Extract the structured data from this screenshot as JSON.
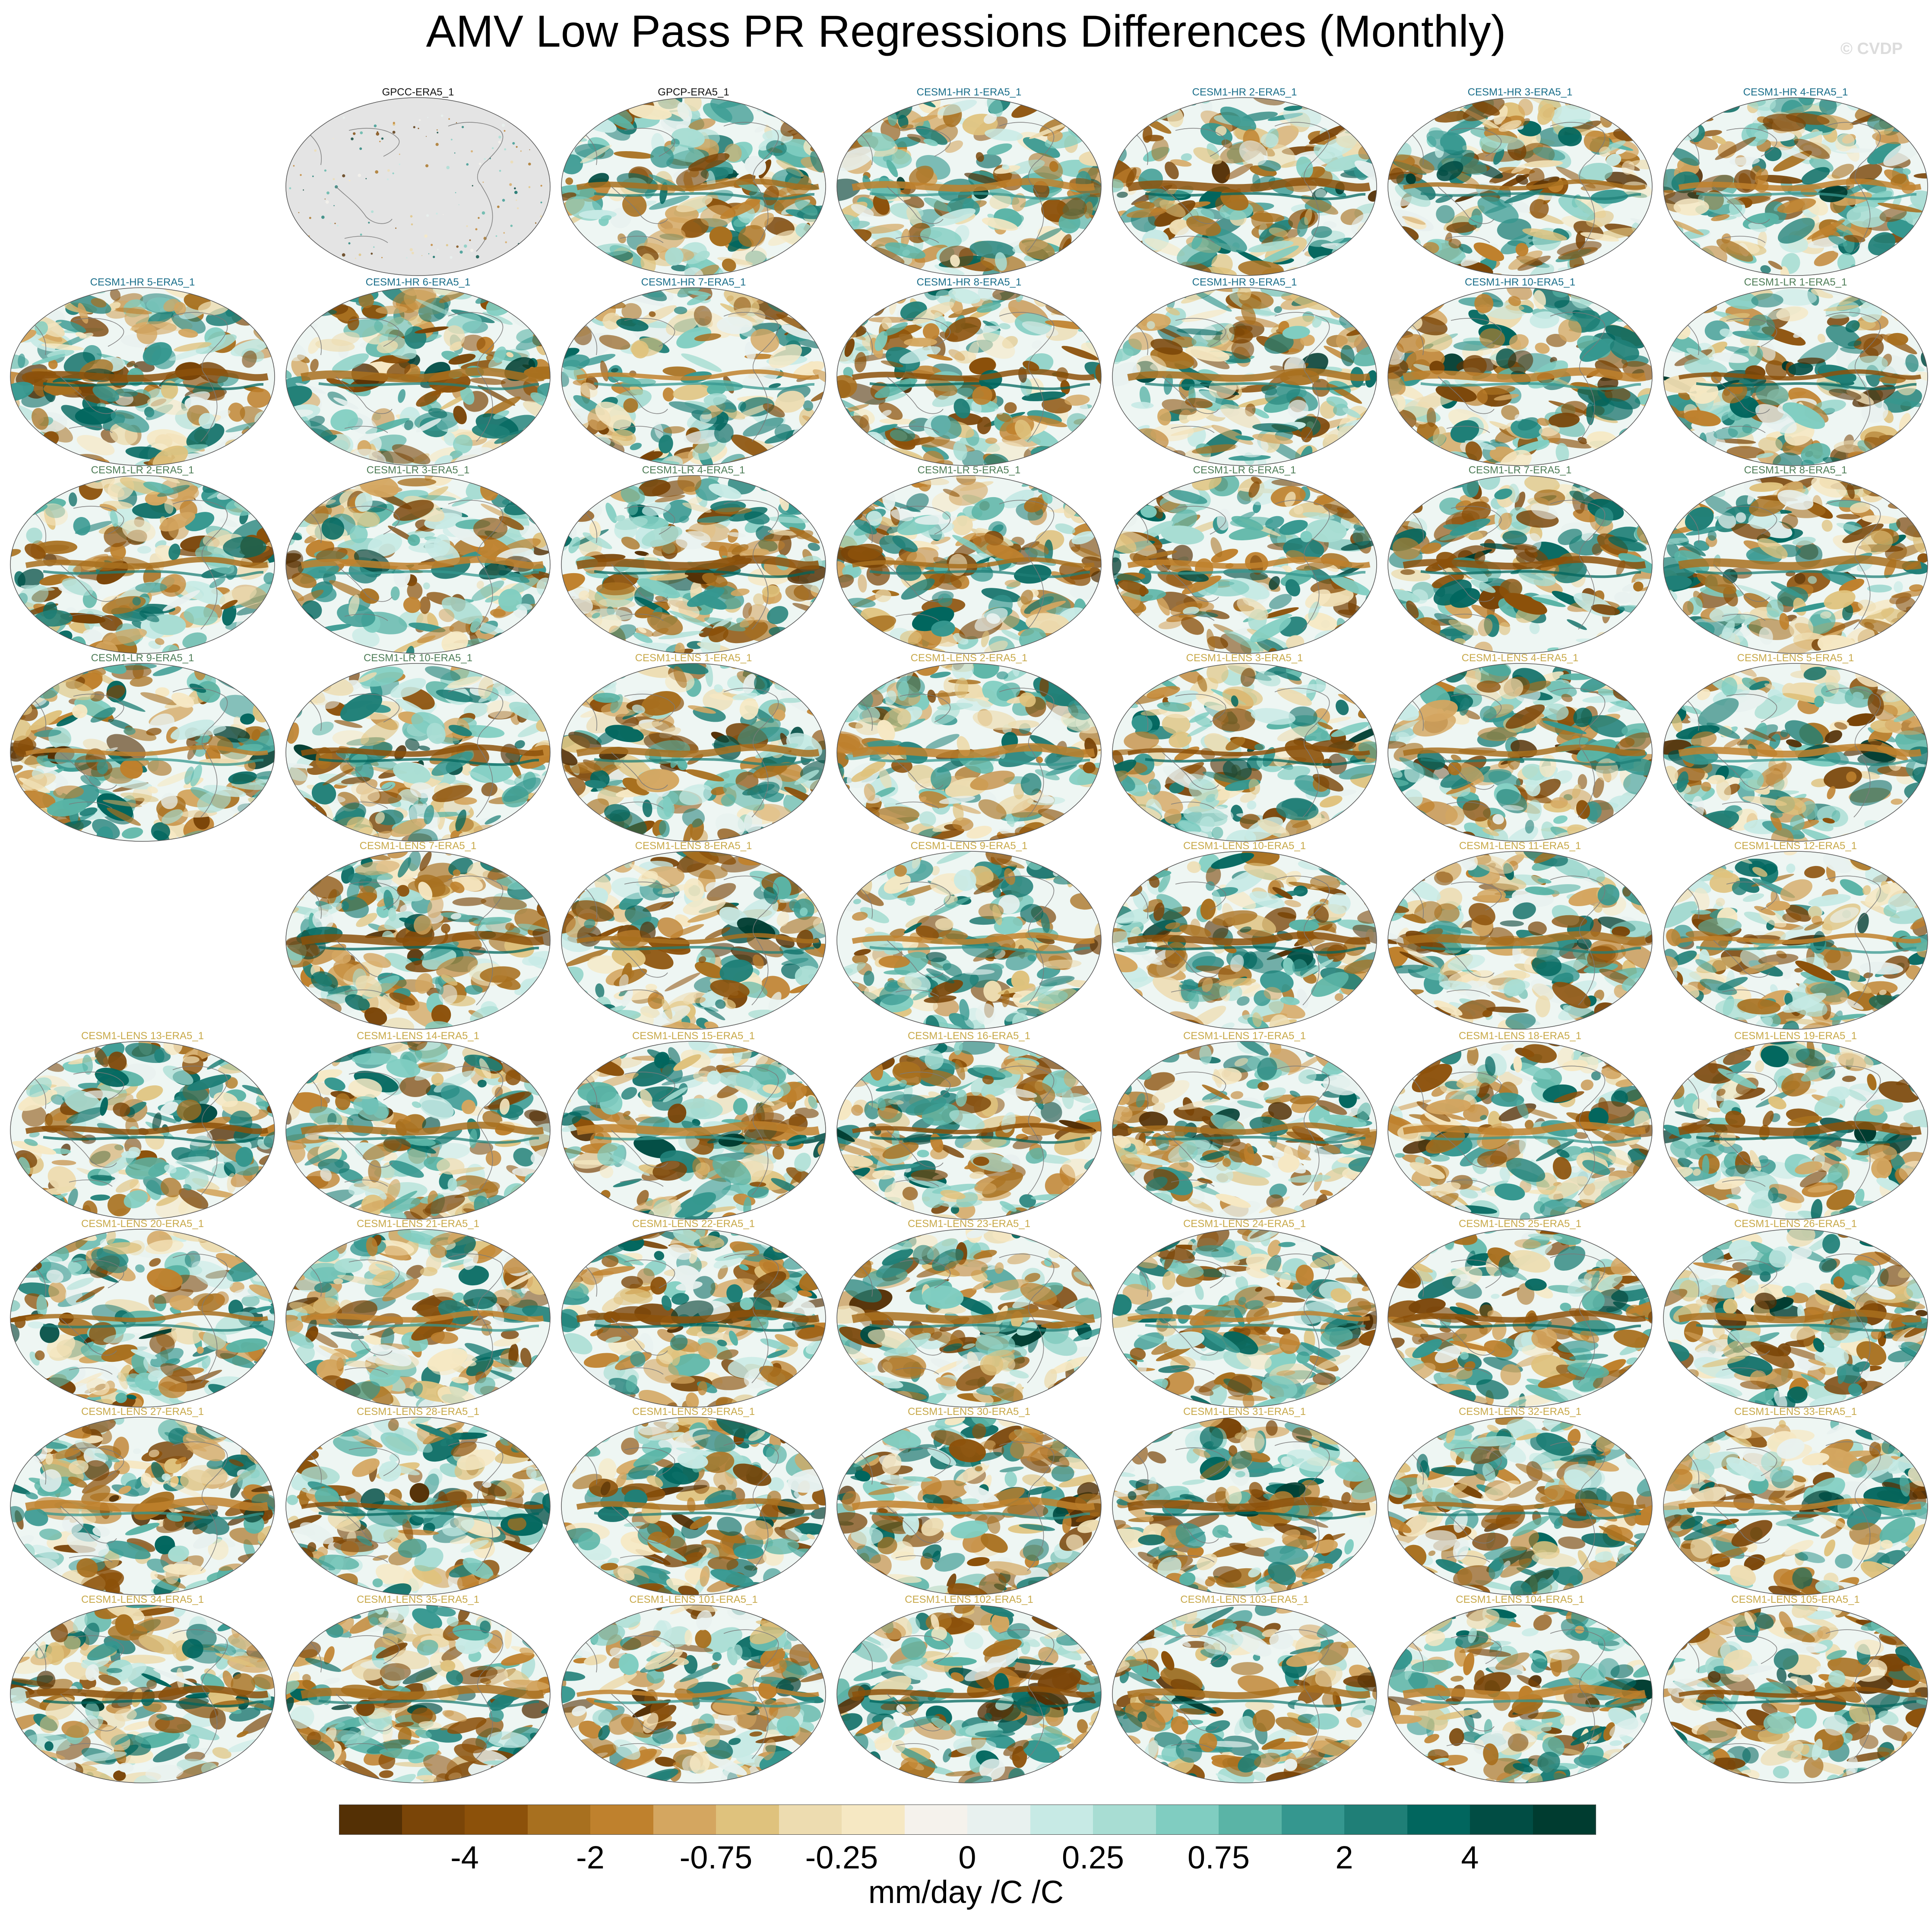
{
  "figure": {
    "title": "AMV Low Pass PR Regressions Differences (Monthly)",
    "watermark": "© CVDP"
  },
  "colors": {
    "label_obs": "#111111",
    "label_hr": "#1a6e8a",
    "label_lr": "#4e7d57",
    "label_lens": "#c8a94a",
    "land": "#e4e4e4",
    "coast": "#7a7a7a"
  },
  "panels": [
    {
      "label": "GPCC-ERA5_1",
      "group": "obs",
      "row": 0,
      "col": 1,
      "kind": "land"
    },
    {
      "label": "GPCP-ERA5_1",
      "group": "obs",
      "row": 0,
      "col": 2,
      "kind": "field"
    },
    {
      "label": "CESM1-HR 1-ERA5_1",
      "group": "hr",
      "row": 0,
      "col": 3,
      "kind": "field"
    },
    {
      "label": "CESM1-HR 2-ERA5_1",
      "group": "hr",
      "row": 0,
      "col": 4,
      "kind": "field"
    },
    {
      "label": "CESM1-HR 3-ERA5_1",
      "group": "hr",
      "row": 0,
      "col": 5,
      "kind": "field"
    },
    {
      "label": "CESM1-HR 4-ERA5_1",
      "group": "hr",
      "row": 0,
      "col": 6,
      "kind": "field"
    },
    {
      "label": "CESM1-HR 5-ERA5_1",
      "group": "hr",
      "row": 1,
      "col": 0,
      "kind": "field"
    },
    {
      "label": "CESM1-HR 6-ERA5_1",
      "group": "hr",
      "row": 1,
      "col": 1,
      "kind": "field"
    },
    {
      "label": "CESM1-HR 7-ERA5_1",
      "group": "hr",
      "row": 1,
      "col": 2,
      "kind": "field"
    },
    {
      "label": "CESM1-HR 8-ERA5_1",
      "group": "hr",
      "row": 1,
      "col": 3,
      "kind": "field"
    },
    {
      "label": "CESM1-HR 9-ERA5_1",
      "group": "hr",
      "row": 1,
      "col": 4,
      "kind": "field"
    },
    {
      "label": "CESM1-HR 10-ERA5_1",
      "group": "hr",
      "row": 1,
      "col": 5,
      "kind": "field"
    },
    {
      "label": "CESM1-LR 1-ERA5_1",
      "group": "lr",
      "row": 1,
      "col": 6,
      "kind": "field"
    },
    {
      "label": "CESM1-LR 2-ERA5_1",
      "group": "lr",
      "row": 2,
      "col": 0,
      "kind": "field"
    },
    {
      "label": "CESM1-LR 3-ERA5_1",
      "group": "lr",
      "row": 2,
      "col": 1,
      "kind": "field"
    },
    {
      "label": "CESM1-LR 4-ERA5_1",
      "group": "lr",
      "row": 2,
      "col": 2,
      "kind": "field"
    },
    {
      "label": "CESM1-LR 5-ERA5_1",
      "group": "lr",
      "row": 2,
      "col": 3,
      "kind": "field"
    },
    {
      "label": "CESM1-LR 6-ERA5_1",
      "group": "lr",
      "row": 2,
      "col": 4,
      "kind": "field"
    },
    {
      "label": "CESM1-LR 7-ERA5_1",
      "group": "lr",
      "row": 2,
      "col": 5,
      "kind": "field"
    },
    {
      "label": "CESM1-LR 8-ERA5_1",
      "group": "lr",
      "row": 2,
      "col": 6,
      "kind": "field"
    },
    {
      "label": "CESM1-LR 9-ERA5_1",
      "group": "lr",
      "row": 3,
      "col": 0,
      "kind": "field"
    },
    {
      "label": "CESM1-LR 10-ERA5_1",
      "group": "lr",
      "row": 3,
      "col": 1,
      "kind": "field"
    },
    {
      "label": "CESM1-LENS 1-ERA5_1",
      "group": "lens",
      "row": 3,
      "col": 2,
      "kind": "field"
    },
    {
      "label": "CESM1-LENS 2-ERA5_1",
      "group": "lens",
      "row": 3,
      "col": 3,
      "kind": "field"
    },
    {
      "label": "CESM1-LENS 3-ERA5_1",
      "group": "lens",
      "row": 3,
      "col": 4,
      "kind": "field"
    },
    {
      "label": "CESM1-LENS 4-ERA5_1",
      "group": "lens",
      "row": 3,
      "col": 5,
      "kind": "field"
    },
    {
      "label": "CESM1-LENS 5-ERA5_1",
      "group": "lens",
      "row": 3,
      "col": 6,
      "kind": "field"
    },
    {
      "label": "CESM1-LENS 7-ERA5_1",
      "group": "lens",
      "row": 4,
      "col": 1,
      "kind": "field"
    },
    {
      "label": "CESM1-LENS 8-ERA5_1",
      "group": "lens",
      "row": 4,
      "col": 2,
      "kind": "field"
    },
    {
      "label": "CESM1-LENS 9-ERA5_1",
      "group": "lens",
      "row": 4,
      "col": 3,
      "kind": "field"
    },
    {
      "label": "CESM1-LENS 10-ERA5_1",
      "group": "lens",
      "row": 4,
      "col": 4,
      "kind": "field"
    },
    {
      "label": "CESM1-LENS 11-ERA5_1",
      "group": "lens",
      "row": 4,
      "col": 5,
      "kind": "field"
    },
    {
      "label": "CESM1-LENS 12-ERA5_1",
      "group": "lens",
      "row": 4,
      "col": 6,
      "kind": "field"
    },
    {
      "label": "CESM1-LENS 13-ERA5_1",
      "group": "lens",
      "row": 5,
      "col": 0,
      "kind": "field"
    },
    {
      "label": "CESM1-LENS 14-ERA5_1",
      "group": "lens",
      "row": 5,
      "col": 1,
      "kind": "field"
    },
    {
      "label": "CESM1-LENS 15-ERA5_1",
      "group": "lens",
      "row": 5,
      "col": 2,
      "kind": "field"
    },
    {
      "label": "CESM1-LENS 16-ERA5_1",
      "group": "lens",
      "row": 5,
      "col": 3,
      "kind": "field"
    },
    {
      "label": "CESM1-LENS 17-ERA5_1",
      "group": "lens",
      "row": 5,
      "col": 4,
      "kind": "field"
    },
    {
      "label": "CESM1-LENS 18-ERA5_1",
      "group": "lens",
      "row": 5,
      "col": 5,
      "kind": "field"
    },
    {
      "label": "CESM1-LENS 19-ERA5_1",
      "group": "lens",
      "row": 5,
      "col": 6,
      "kind": "field"
    },
    {
      "label": "CESM1-LENS 20-ERA5_1",
      "group": "lens",
      "row": 6,
      "col": 0,
      "kind": "field"
    },
    {
      "label": "CESM1-LENS 21-ERA5_1",
      "group": "lens",
      "row": 6,
      "col": 1,
      "kind": "field"
    },
    {
      "label": "CESM1-LENS 22-ERA5_1",
      "group": "lens",
      "row": 6,
      "col": 2,
      "kind": "field"
    },
    {
      "label": "CESM1-LENS 23-ERA5_1",
      "group": "lens",
      "row": 6,
      "col": 3,
      "kind": "field"
    },
    {
      "label": "CESM1-LENS 24-ERA5_1",
      "group": "lens",
      "row": 6,
      "col": 4,
      "kind": "field"
    },
    {
      "label": "CESM1-LENS 25-ERA5_1",
      "group": "lens",
      "row": 6,
      "col": 5,
      "kind": "field"
    },
    {
      "label": "CESM1-LENS 26-ERA5_1",
      "group": "lens",
      "row": 6,
      "col": 6,
      "kind": "field"
    },
    {
      "label": "CESM1-LENS 27-ERA5_1",
      "group": "lens",
      "row": 7,
      "col": 0,
      "kind": "field"
    },
    {
      "label": "CESM1-LENS 28-ERA5_1",
      "group": "lens",
      "row": 7,
      "col": 1,
      "kind": "field"
    },
    {
      "label": "CESM1-LENS 29-ERA5_1",
      "group": "lens",
      "row": 7,
      "col": 2,
      "kind": "field"
    },
    {
      "label": "CESM1-LENS 30-ERA5_1",
      "group": "lens",
      "row": 7,
      "col": 3,
      "kind": "field"
    },
    {
      "label": "CESM1-LENS 31-ERA5_1",
      "group": "lens",
      "row": 7,
      "col": 4,
      "kind": "field"
    },
    {
      "label": "CESM1-LENS 32-ERA5_1",
      "group": "lens",
      "row": 7,
      "col": 5,
      "kind": "field"
    },
    {
      "label": "CESM1-LENS 33-ERA5_1",
      "group": "lens",
      "row": 7,
      "col": 6,
      "kind": "field"
    },
    {
      "label": "CESM1-LENS 34-ERA5_1",
      "group": "lens",
      "row": 8,
      "col": 0,
      "kind": "field"
    },
    {
      "label": "CESM1-LENS 35-ERA5_1",
      "group": "lens",
      "row": 8,
      "col": 1,
      "kind": "field"
    },
    {
      "label": "CESM1-LENS 101-ERA5_1",
      "group": "lens",
      "row": 8,
      "col": 2,
      "kind": "field"
    },
    {
      "label": "CESM1-LENS 102-ERA5_1",
      "group": "lens",
      "row": 8,
      "col": 3,
      "kind": "field"
    },
    {
      "label": "CESM1-LENS 103-ERA5_1",
      "group": "lens",
      "row": 8,
      "col": 4,
      "kind": "field"
    },
    {
      "label": "CESM1-LENS 104-ERA5_1",
      "group": "lens",
      "row": 8,
      "col": 5,
      "kind": "field"
    },
    {
      "label": "CESM1-LENS 105-ERA5_1",
      "group": "lens",
      "row": 8,
      "col": 6,
      "kind": "field"
    }
  ],
  "colorbar": {
    "colors": [
      "#543005",
      "#7a4508",
      "#8c510a",
      "#a8701f",
      "#bf812d",
      "#d4a660",
      "#dfc27d",
      "#eddcb0",
      "#f6e8c3",
      "#f5f2ec",
      "#e8f1ef",
      "#c7eae5",
      "#a8ddd3",
      "#80cdc1",
      "#5ab4a6",
      "#35978f",
      "#1f7f77",
      "#01665e",
      "#014d44",
      "#003c30"
    ],
    "ticks": [
      {
        "label": "-4",
        "boundary": 2
      },
      {
        "label": "-2",
        "boundary": 4
      },
      {
        "label": "-0.75",
        "boundary": 6
      },
      {
        "label": "-0.25",
        "boundary": 8
      },
      {
        "label": "0",
        "boundary": 10
      },
      {
        "label": "0.25",
        "boundary": 12
      },
      {
        "label": "0.75",
        "boundary": 14
      },
      {
        "label": "2",
        "boundary": 16
      },
      {
        "label": "4",
        "boundary": 18
      }
    ],
    "units": "mm/day /C /C"
  }
}
